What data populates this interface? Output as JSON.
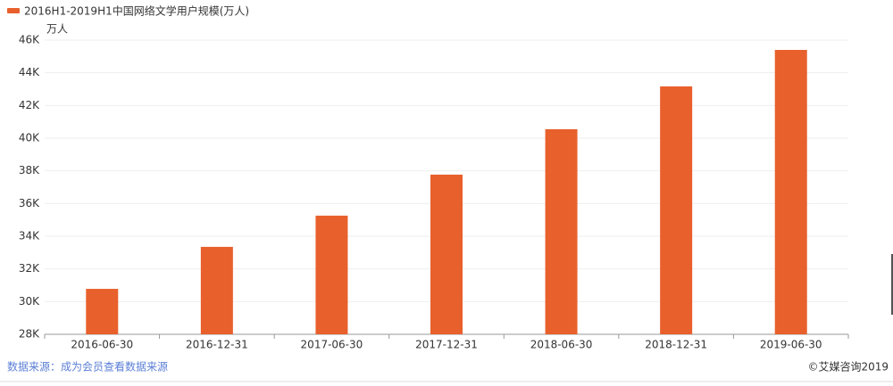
{
  "chart_data": {
    "type": "bar",
    "y_unit": "万人",
    "categories": [
      "2016-06-30",
      "2016-12-31",
      "2017-06-30",
      "2017-12-31",
      "2018-06-30",
      "2018-12-31",
      "2019-06-30"
    ],
    "series": [
      {
        "name": "2016H1-2019H1中国网络文学用户规模(万人)",
        "color": "#e8602c",
        "values": [
          30780,
          33350,
          35260,
          37770,
          40550,
          43170,
          45400
        ]
      }
    ],
    "ylim": [
      28000,
      46000
    ],
    "yticks": [
      {
        "value": 28000,
        "label": "28K"
      },
      {
        "value": 30000,
        "label": "30K"
      },
      {
        "value": 32000,
        "label": "32K"
      },
      {
        "value": 34000,
        "label": "34K"
      },
      {
        "value": 36000,
        "label": "36K"
      },
      {
        "value": 38000,
        "label": "38K"
      },
      {
        "value": 40000,
        "label": "40K"
      },
      {
        "value": 42000,
        "label": "42K"
      },
      {
        "value": 44000,
        "label": "44K"
      },
      {
        "value": 46000,
        "label": "46K"
      }
    ],
    "grid": true,
    "legend": "top-left"
  },
  "footer": {
    "source": "数据来源：成为会员查看数据来源",
    "copyright": "©艾媒咨询2019"
  }
}
